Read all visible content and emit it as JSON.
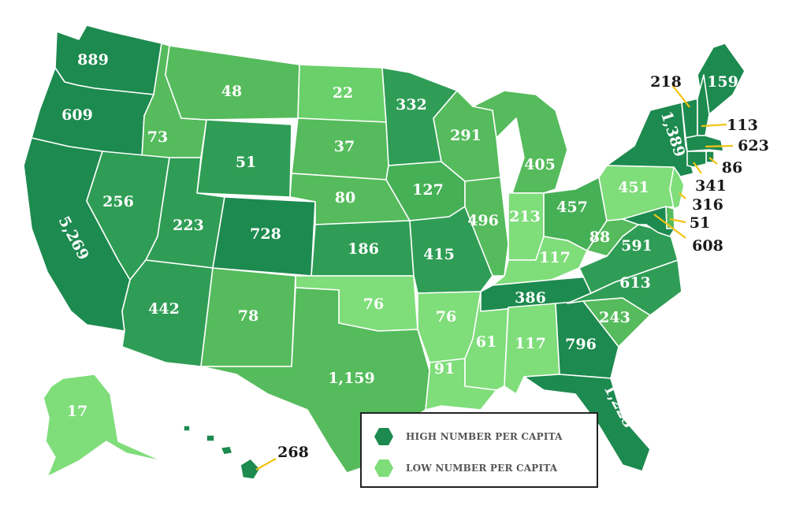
{
  "colors": {
    "very_high": "#1d8a4f",
    "high": "#2f9d55",
    "mid": "#46b057",
    "mid_light": "#55bb5c",
    "low": "#69d06a",
    "very_low": "#7fdd7a"
  },
  "legend": {
    "high_label": "HIGH NUMBER PER CAPITA",
    "low_label": "LOW NUMBER PER CAPITA"
  },
  "states": [
    {
      "id": "WA",
      "value": "889"
    },
    {
      "id": "OR",
      "value": "609"
    },
    {
      "id": "CA",
      "value": "5,269"
    },
    {
      "id": "ID",
      "value": "73"
    },
    {
      "id": "NV",
      "value": "256"
    },
    {
      "id": "MT",
      "value": "48"
    },
    {
      "id": "WY",
      "value": "51"
    },
    {
      "id": "UT",
      "value": "223"
    },
    {
      "id": "AZ",
      "value": "442"
    },
    {
      "id": "CO",
      "value": "728"
    },
    {
      "id": "NM",
      "value": "78"
    },
    {
      "id": "ND",
      "value": "22"
    },
    {
      "id": "SD",
      "value": "37"
    },
    {
      "id": "NE",
      "value": "80"
    },
    {
      "id": "KS",
      "value": "186"
    },
    {
      "id": "OK",
      "value": "76"
    },
    {
      "id": "TX",
      "value": "1,159"
    },
    {
      "id": "MN",
      "value": "332"
    },
    {
      "id": "IA",
      "value": "127"
    },
    {
      "id": "MO",
      "value": "415"
    },
    {
      "id": "AR",
      "value": "76"
    },
    {
      "id": "LA",
      "value": "91"
    },
    {
      "id": "WI",
      "value": "291"
    },
    {
      "id": "IL",
      "value": "496"
    },
    {
      "id": "MS",
      "value": "61"
    },
    {
      "id": "MI",
      "value": "405"
    },
    {
      "id": "IN",
      "value": "213"
    },
    {
      "id": "KY",
      "value": "117"
    },
    {
      "id": "TN",
      "value": "386"
    },
    {
      "id": "AL",
      "value": "117"
    },
    {
      "id": "OH",
      "value": "457"
    },
    {
      "id": "GA",
      "value": "796"
    },
    {
      "id": "FL",
      "value": "1,223"
    },
    {
      "id": "SC",
      "value": "243"
    },
    {
      "id": "NC",
      "value": "613"
    },
    {
      "id": "VA",
      "value": "591"
    },
    {
      "id": "WV",
      "value": "88"
    },
    {
      "id": "PA",
      "value": "451"
    },
    {
      "id": "NY",
      "value": "1,389"
    },
    {
      "id": "ME",
      "value": "159"
    },
    {
      "id": "VT",
      "value": "218"
    },
    {
      "id": "NH",
      "value": "113"
    },
    {
      "id": "MA",
      "value": "623"
    },
    {
      "id": "RI",
      "value": "86"
    },
    {
      "id": "CT",
      "value": "341"
    },
    {
      "id": "NJ",
      "value": "316"
    },
    {
      "id": "DE",
      "value": "51"
    },
    {
      "id": "MD",
      "value": "608"
    },
    {
      "id": "AK",
      "value": "17"
    },
    {
      "id": "HI",
      "value": "268"
    }
  ]
}
